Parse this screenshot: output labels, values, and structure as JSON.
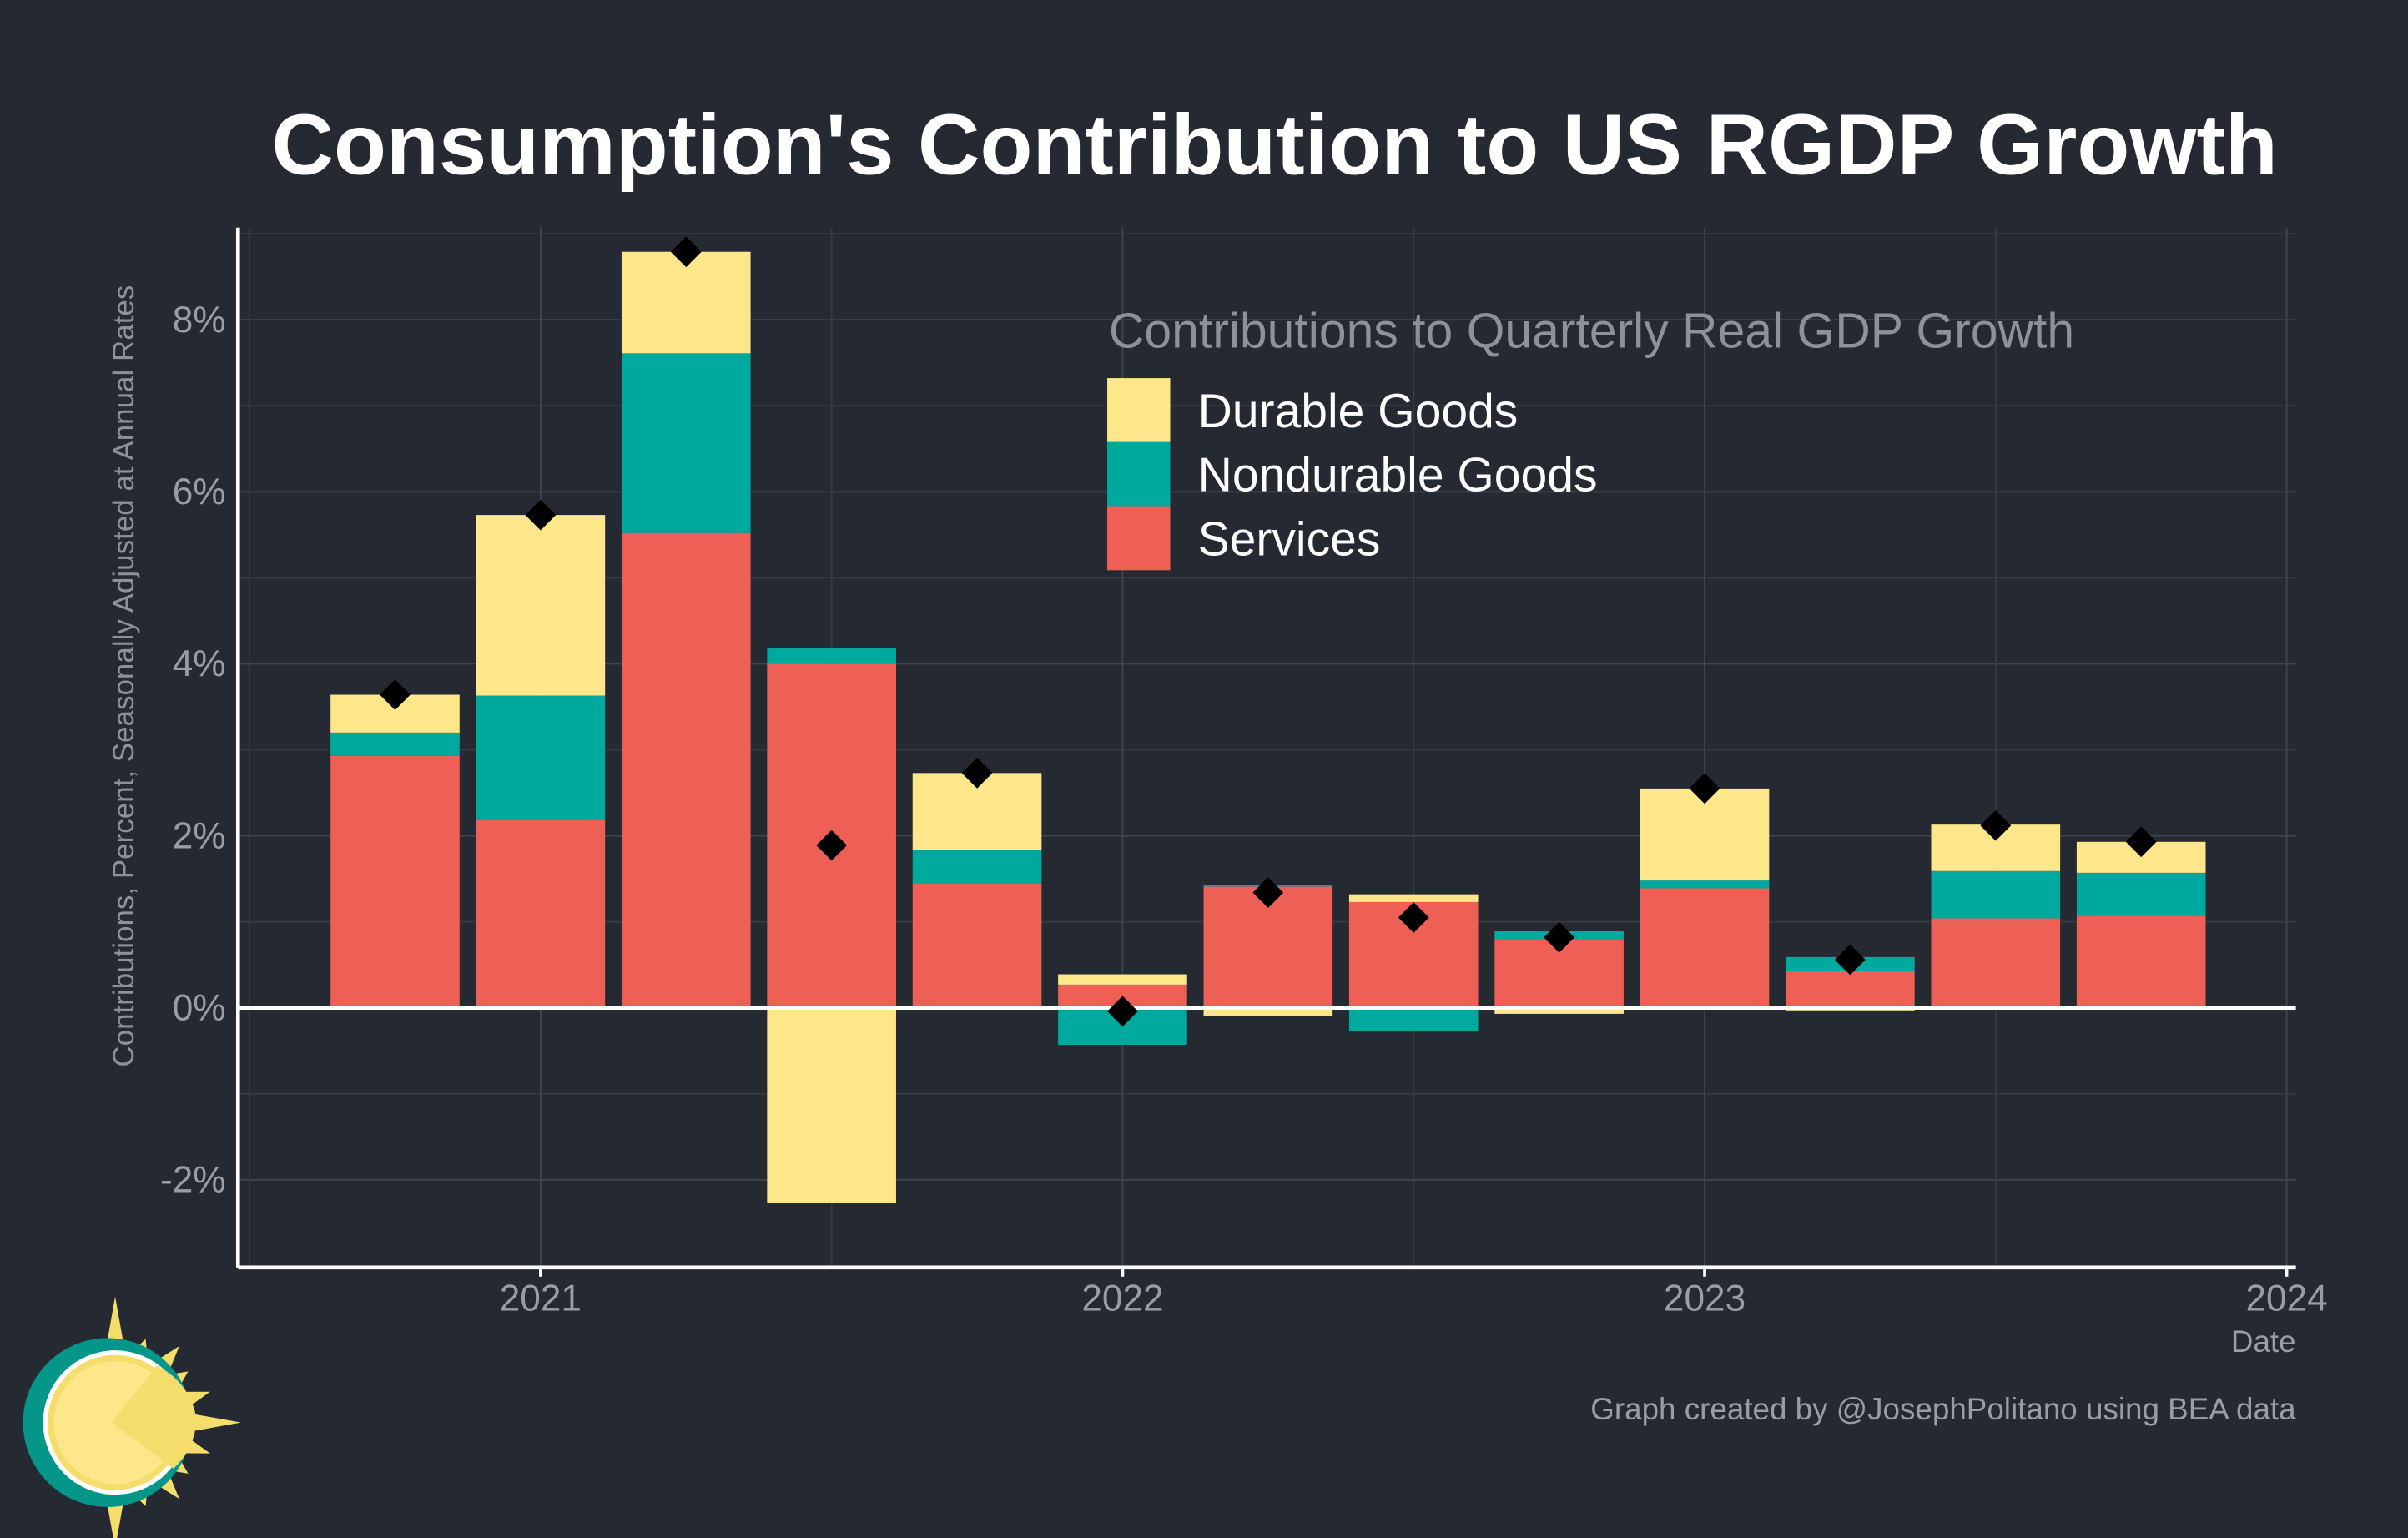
{
  "chart_data": {
    "type": "bar",
    "stacked": true,
    "title": "Consumption's Contribution to US RGDP Growth",
    "xlabel": "Date",
    "ylabel": "Contributions, Percent, Seasonally Adjusted at Annual Rates",
    "legend_title": "Contributions to Quarterly Real GDP Growth",
    "legend_position": "top-right",
    "grid": true,
    "caption": "Graph created by @JosephPolitano using BEA data",
    "x": [
      "2020-10-01",
      "2021-01-01",
      "2021-04-01",
      "2021-07-01",
      "2021-10-01",
      "2022-01-01",
      "2022-04-01",
      "2022-07-01",
      "2022-10-01",
      "2023-01-01",
      "2023-04-01",
      "2023-07-01",
      "2023-10-01"
    ],
    "x_ticks": [
      "2021",
      "2022",
      "2023",
      "2024"
    ],
    "y_ticks": [
      "-2%",
      "0%",
      "2%",
      "4%",
      "6%",
      "8%"
    ],
    "y_tick_values": [
      -2,
      0,
      2,
      4,
      6,
      8
    ],
    "ylim": [
      -3,
      9.07
    ],
    "xlim": [
      "2020-06-25",
      "2024-01-08"
    ],
    "series": [
      {
        "name": "Services",
        "color": "#EE6055",
        "values": [
          2.93,
          2.18,
          5.52,
          4.0,
          1.45,
          0.27,
          1.41,
          1.23,
          0.8,
          1.39,
          0.43,
          1.04,
          1.07
        ]
      },
      {
        "name": "Nondurable Goods",
        "color": "#00A99D",
        "values": [
          0.27,
          1.45,
          2.09,
          0.18,
          0.39,
          -0.43,
          0.02,
          -0.27,
          0.09,
          0.09,
          0.16,
          0.55,
          0.5
        ]
      },
      {
        "name": "Durable Goods",
        "color": "#FEE78A",
        "values": [
          0.44,
          2.1,
          1.18,
          -2.27,
          0.89,
          0.12,
          -0.09,
          0.09,
          -0.07,
          1.07,
          -0.03,
          0.54,
          0.36
        ]
      }
    ],
    "total": {
      "marker": "diamond",
      "color": "#000000",
      "values": [
        3.64,
        5.73,
        8.79,
        1.89,
        2.73,
        -0.04,
        1.34,
        1.05,
        0.82,
        2.55,
        0.56,
        2.12,
        1.93
      ]
    }
  },
  "colors": {
    "background": "#252932",
    "text": "#FFFFFF",
    "muted": "#9A9DA3",
    "grid": "#3C4049",
    "logo_teal": "#05968A",
    "logo_yellow": "#F4DD6A"
  }
}
